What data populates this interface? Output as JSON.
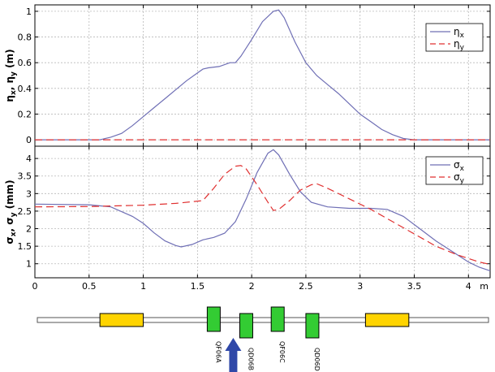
{
  "chart_data": [
    {
      "type": "line",
      "ylabel": "η_x, η_y (m)",
      "ylabel_main": "η",
      "ylabel_sub1": "x",
      "ylabel_mid": ", η",
      "ylabel_sub2": "y",
      "ylabel_tail": " (m)",
      "xlim": [
        0,
        4.2
      ],
      "ylim": [
        -0.05,
        1.05
      ],
      "yticks": [
        "0",
        "0.2",
        "0.4",
        "0.6",
        "0.8",
        "1"
      ],
      "ytick_values": [
        0,
        0.2,
        0.4,
        0.6,
        0.8,
        1.0
      ],
      "grid": true,
      "legend": "top-right",
      "series": [
        {
          "name": "η_x",
          "name_main": "η",
          "name_sub": "x",
          "color": "#6f6fb5",
          "dash": "solid",
          "x": [
            0,
            0.6,
            0.7,
            0.8,
            0.9,
            1.0,
            1.1,
            1.2,
            1.3,
            1.4,
            1.5,
            1.55,
            1.6,
            1.7,
            1.8,
            1.85,
            1.9,
            2.0,
            2.1,
            2.2,
            2.25,
            2.3,
            2.4,
            2.5,
            2.6,
            2.7,
            2.8,
            2.9,
            3.0,
            3.1,
            3.2,
            3.3,
            3.4,
            3.5,
            4.2
          ],
          "values": [
            0,
            0,
            0.02,
            0.05,
            0.11,
            0.18,
            0.25,
            0.32,
            0.39,
            0.46,
            0.52,
            0.55,
            0.56,
            0.57,
            0.6,
            0.6,
            0.65,
            0.78,
            0.92,
            1.0,
            1.01,
            0.95,
            0.76,
            0.6,
            0.5,
            0.43,
            0.36,
            0.28,
            0.2,
            0.14,
            0.08,
            0.04,
            0.01,
            0,
            0
          ]
        },
        {
          "name": "η_y",
          "name_main": "η",
          "name_sub": "y",
          "color": "#e03030",
          "dash": "dashed",
          "x": [
            0,
            4.2
          ],
          "values": [
            0,
            0
          ]
        }
      ]
    },
    {
      "type": "line",
      "ylabel": "σ_x, σ_y (mm)",
      "ylabel_main": "σ",
      "ylabel_sub1": "x",
      "ylabel_mid": ", σ",
      "ylabel_sub2": "y",
      "ylabel_tail": " (mm)",
      "xlabel_unit": "m",
      "xlim": [
        0,
        4.2
      ],
      "ylim": [
        0.6,
        4.35
      ],
      "yticks": [
        "1",
        "1.5",
        "2",
        "2.5",
        "3",
        "3.5",
        "4"
      ],
      "ytick_values": [
        1,
        1.5,
        2,
        2.5,
        3,
        3.5,
        4
      ],
      "xticks": [
        "0",
        "0.5",
        "1",
        "1.5",
        "2",
        "2.5",
        "3",
        "3.5",
        "4"
      ],
      "xtick_values": [
        0,
        0.5,
        1,
        1.5,
        2,
        2.5,
        3,
        3.5,
        4
      ],
      "grid": true,
      "legend": "top-right",
      "series": [
        {
          "name": "σ_x",
          "name_main": "σ",
          "name_sub": "x",
          "color": "#6f6fb5",
          "dash": "solid",
          "x": [
            0,
            0.5,
            0.7,
            0.9,
            1.0,
            1.1,
            1.2,
            1.3,
            1.35,
            1.45,
            1.55,
            1.65,
            1.75,
            1.85,
            1.95,
            2.05,
            2.15,
            2.2,
            2.25,
            2.35,
            2.45,
            2.55,
            2.7,
            2.9,
            3.1,
            3.25,
            3.4,
            3.55,
            3.7,
            3.85,
            4.0,
            4.1,
            4.2
          ],
          "values": [
            2.7,
            2.68,
            2.62,
            2.35,
            2.15,
            1.88,
            1.65,
            1.52,
            1.48,
            1.55,
            1.68,
            1.75,
            1.87,
            2.2,
            2.85,
            3.6,
            4.15,
            4.25,
            4.1,
            3.55,
            3.05,
            2.75,
            2.62,
            2.58,
            2.58,
            2.55,
            2.35,
            2.0,
            1.65,
            1.35,
            1.05,
            0.9,
            0.8
          ]
        },
        {
          "name": "σ_y",
          "name_main": "σ",
          "name_sub": "y",
          "color": "#e03030",
          "dash": "dashed",
          "x": [
            0,
            0.5,
            1.0,
            1.3,
            1.55,
            1.65,
            1.75,
            1.85,
            1.9,
            1.95,
            2.05,
            2.15,
            2.2,
            2.25,
            2.35,
            2.45,
            2.55,
            2.6,
            2.7,
            2.9,
            3.1,
            3.3,
            3.5,
            3.7,
            3.9,
            4.1,
            4.2
          ],
          "values": [
            2.62,
            2.63,
            2.67,
            2.72,
            2.8,
            3.15,
            3.55,
            3.78,
            3.8,
            3.7,
            3.25,
            2.75,
            2.52,
            2.55,
            2.8,
            3.1,
            3.25,
            3.28,
            3.15,
            2.85,
            2.55,
            2.2,
            1.85,
            1.5,
            1.25,
            1.05,
            0.98
          ]
        }
      ]
    }
  ],
  "lattice": {
    "xlim": [
      0,
      4.2
    ],
    "elements": [
      {
        "type": "dipole",
        "start": 0.6,
        "end": 1.0,
        "label": ""
      },
      {
        "type": "quad",
        "center": 1.65,
        "label": "QF06A"
      },
      {
        "type": "quad",
        "center": 1.95,
        "label": "QD06B"
      },
      {
        "type": "quad",
        "center": 2.24,
        "label": "QF06C"
      },
      {
        "type": "quad",
        "center": 2.56,
        "label": "QD06D"
      },
      {
        "type": "dipole",
        "start": 3.05,
        "end": 3.45,
        "label": ""
      }
    ],
    "marker_position": 1.83,
    "colors": {
      "dipole": "#ffd400",
      "quad": "#33cc33",
      "arrow": "#2f48a8",
      "beamline": "#ffffff"
    }
  }
}
